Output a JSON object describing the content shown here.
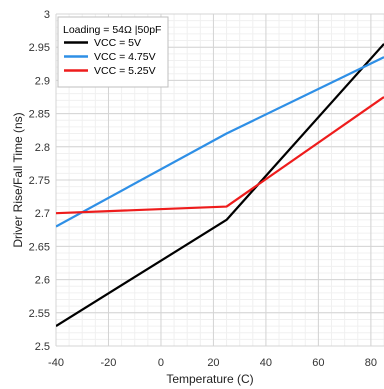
{
  "chart_data": {
    "type": "line",
    "xlabel": "Temperature (C)",
    "ylabel": "Driver Rise/Fall Time (ns)",
    "xlim": [
      -40,
      85
    ],
    "ylim": [
      2.5,
      3.0
    ],
    "x_ticks": [
      -40,
      -20,
      0,
      20,
      40,
      60,
      80
    ],
    "y_ticks": [
      2.5,
      2.55,
      2.6,
      2.65,
      2.7,
      2.75,
      2.8,
      2.85,
      2.9,
      2.95,
      3.0
    ],
    "x_tick_labels": [
      "-40",
      "-20",
      "0",
      "20",
      "40",
      "60",
      "80"
    ],
    "y_tick_labels": [
      "2.5",
      "2.55",
      "2.6",
      "2.65",
      "2.7",
      "2.75",
      "2.8",
      "2.85",
      "2.9",
      "2.95",
      "3"
    ],
    "grid": true,
    "legend": {
      "title": "Loading = 54Ω |50pF",
      "placement": "top-left"
    },
    "series": [
      {
        "name": "VCC = 5V",
        "color": "#000000",
        "x": [
          -40,
          25,
          85
        ],
        "y": [
          2.53,
          2.69,
          2.955
        ]
      },
      {
        "name": "VCC = 4.75V",
        "color": "#2E8FE6",
        "x": [
          -40,
          25,
          85
        ],
        "y": [
          2.68,
          2.82,
          2.935
        ]
      },
      {
        "name": "VCC = 5.25V",
        "color": "#EE1C1C",
        "x": [
          -40,
          25,
          85
        ],
        "y": [
          2.7,
          2.71,
          2.875
        ]
      }
    ]
  }
}
